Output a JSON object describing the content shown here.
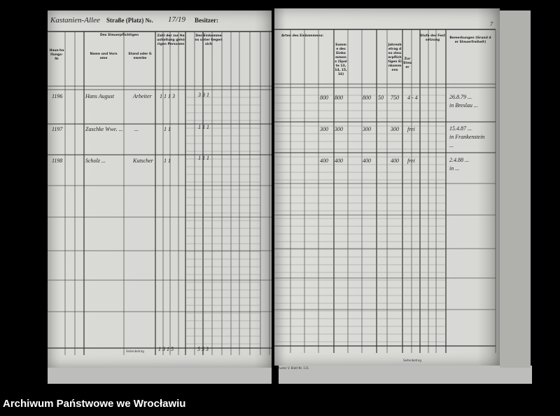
{
  "header": {
    "street": "Kastanien-Allee",
    "street_label": "Straße (Platz) №.",
    "house_number": "17/19",
    "owner_label": "Besitzer:",
    "page_mark": "7"
  },
  "left_columns": {
    "household": "Haus-haltungs-№",
    "taxpayer_group": "Des Steuerpflichtigen",
    "name": "Name und Vorname",
    "occupation": "Stand oder Gewerbe",
    "persons": "Zahl der zur Haushaltung gehörigen Personen",
    "income_group": "Des Einkommens unter Gegen sich"
  },
  "right_columns": {
    "income_types": "Arten des Einkommens:",
    "income_sum": "Summe des Einkommens (Spalte 13, 14, 15, 16)",
    "annual": "Jahresbetrag des steuerpflichtigen Einkommens",
    "tax": "Zur Steuer",
    "assessment": "Stufe der Festsetzung",
    "remarks": "Bemerkungen (Grund der Steuerfreiheit)"
  },
  "rows": [
    {
      "no": "1196",
      "sub": "",
      "name": "Hans August",
      "occupation": "Arbeiter",
      "counts": "1  1  1  3",
      "persons": "3  3  1",
      "inc1": "800",
      "inc2": "800",
      "inc3": "800",
      "inc4": "50",
      "inc5": "750",
      "tax": "4 - 4",
      "remarks1": "26.8.79 ...",
      "remarks2": "in Breslau ..."
    },
    {
      "no": "1197",
      "sub": "",
      "name": "Zaschke Wwe. ...",
      "occupation": "...",
      "counts": "1        1",
      "persons": "1  1  1",
      "inc1": "300",
      "inc2": "300",
      "inc3": "300",
      "inc4": "",
      "inc5": "300",
      "tax": "frei",
      "remarks1": "15.4.87 ...",
      "remarks2": "in Frankenstein",
      "remarks3": "..."
    },
    {
      "no": "1198",
      "sub": "",
      "name": "Scholz ...",
      "occupation": "Kutscher",
      "counts": "1        1",
      "persons": "1  1  1",
      "inc1": "400",
      "inc2": "400",
      "inc3": "400",
      "inc4": "",
      "inc5": "400",
      "tax": "frei",
      "remarks1": "2.4.88 ...",
      "remarks2": "in ..."
    }
  ],
  "totals": {
    "label": "Seitenbetrag",
    "counts": "1  3  1  5",
    "persons": "5  5  3"
  },
  "footer": {
    "form": "Muster V. Blatt Nr. 111.",
    "right_total": "Seitenbetrag"
  },
  "caption": "Archiwum Państwowe we Wrocławiu"
}
